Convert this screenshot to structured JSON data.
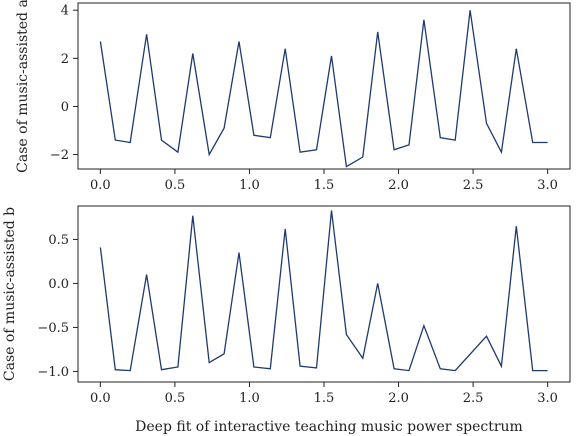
{
  "chart_data": [
    {
      "type": "line",
      "ylabel": "Case of music-assisted a",
      "xlim": [
        -0.15,
        3.15
      ],
      "ylim": [
        -2.6,
        4.3
      ],
      "xticks": [
        "0.0",
        "0.5",
        "1.0",
        "1.5",
        "2.0",
        "2.5",
        "3.0"
      ],
      "yticks": [
        "4",
        "2",
        "0",
        "−2"
      ],
      "grid": false,
      "series": [
        {
          "color": "#1f3a6e",
          "x": [
            0.0,
            0.1,
            0.2,
            0.31,
            0.41,
            0.52,
            0.62,
            0.73,
            0.83,
            0.93,
            1.03,
            1.14,
            1.24,
            1.34,
            1.45,
            1.55,
            1.65,
            1.76,
            1.86,
            1.97,
            2.07,
            2.17,
            2.28,
            2.38,
            2.48,
            2.59,
            2.69,
            2.79,
            2.9,
            3.0
          ],
          "y": [
            2.7,
            -1.4,
            -1.5,
            3.0,
            -1.4,
            -1.9,
            2.2,
            -2.0,
            -0.9,
            2.7,
            -1.2,
            -1.3,
            2.4,
            -1.9,
            -1.8,
            2.1,
            -2.5,
            -2.1,
            3.1,
            -1.8,
            -1.6,
            3.6,
            -1.3,
            -1.4,
            4.0,
            -0.7,
            -1.9,
            2.4,
            -1.5,
            -1.5
          ]
        }
      ]
    },
    {
      "type": "line",
      "ylabel": "Case of music-assisted b",
      "xlabel": "Deep fit of interactive teaching music power spectrum",
      "xlim": [
        -0.15,
        3.15
      ],
      "ylim": [
        -1.12,
        0.88
      ],
      "xticks": [
        "0.0",
        "0.5",
        "1.0",
        "1.5",
        "2.0",
        "2.5",
        "3.0"
      ],
      "yticks": [
        "0.5",
        "0.0",
        "−0.5",
        "−1.0"
      ],
      "grid": false,
      "series": [
        {
          "color": "#1f3a6e",
          "x": [
            0.0,
            0.1,
            0.2,
            0.31,
            0.41,
            0.52,
            0.62,
            0.73,
            0.83,
            0.93,
            1.03,
            1.14,
            1.24,
            1.34,
            1.45,
            1.55,
            1.65,
            1.76,
            1.86,
            1.97,
            2.07,
            2.17,
            2.28,
            2.38,
            2.59,
            2.69,
            2.79,
            2.9,
            3.0
          ],
          "y": [
            0.41,
            -0.98,
            -0.99,
            0.1,
            -0.98,
            -0.95,
            0.77,
            -0.9,
            -0.8,
            0.35,
            -0.95,
            -0.97,
            0.62,
            -0.94,
            -0.96,
            0.83,
            -0.58,
            -0.85,
            0.0,
            -0.97,
            -0.99,
            -0.48,
            -0.97,
            -0.99,
            -0.6,
            -0.94,
            0.65,
            -0.99,
            -0.99
          ]
        }
      ]
    }
  ]
}
